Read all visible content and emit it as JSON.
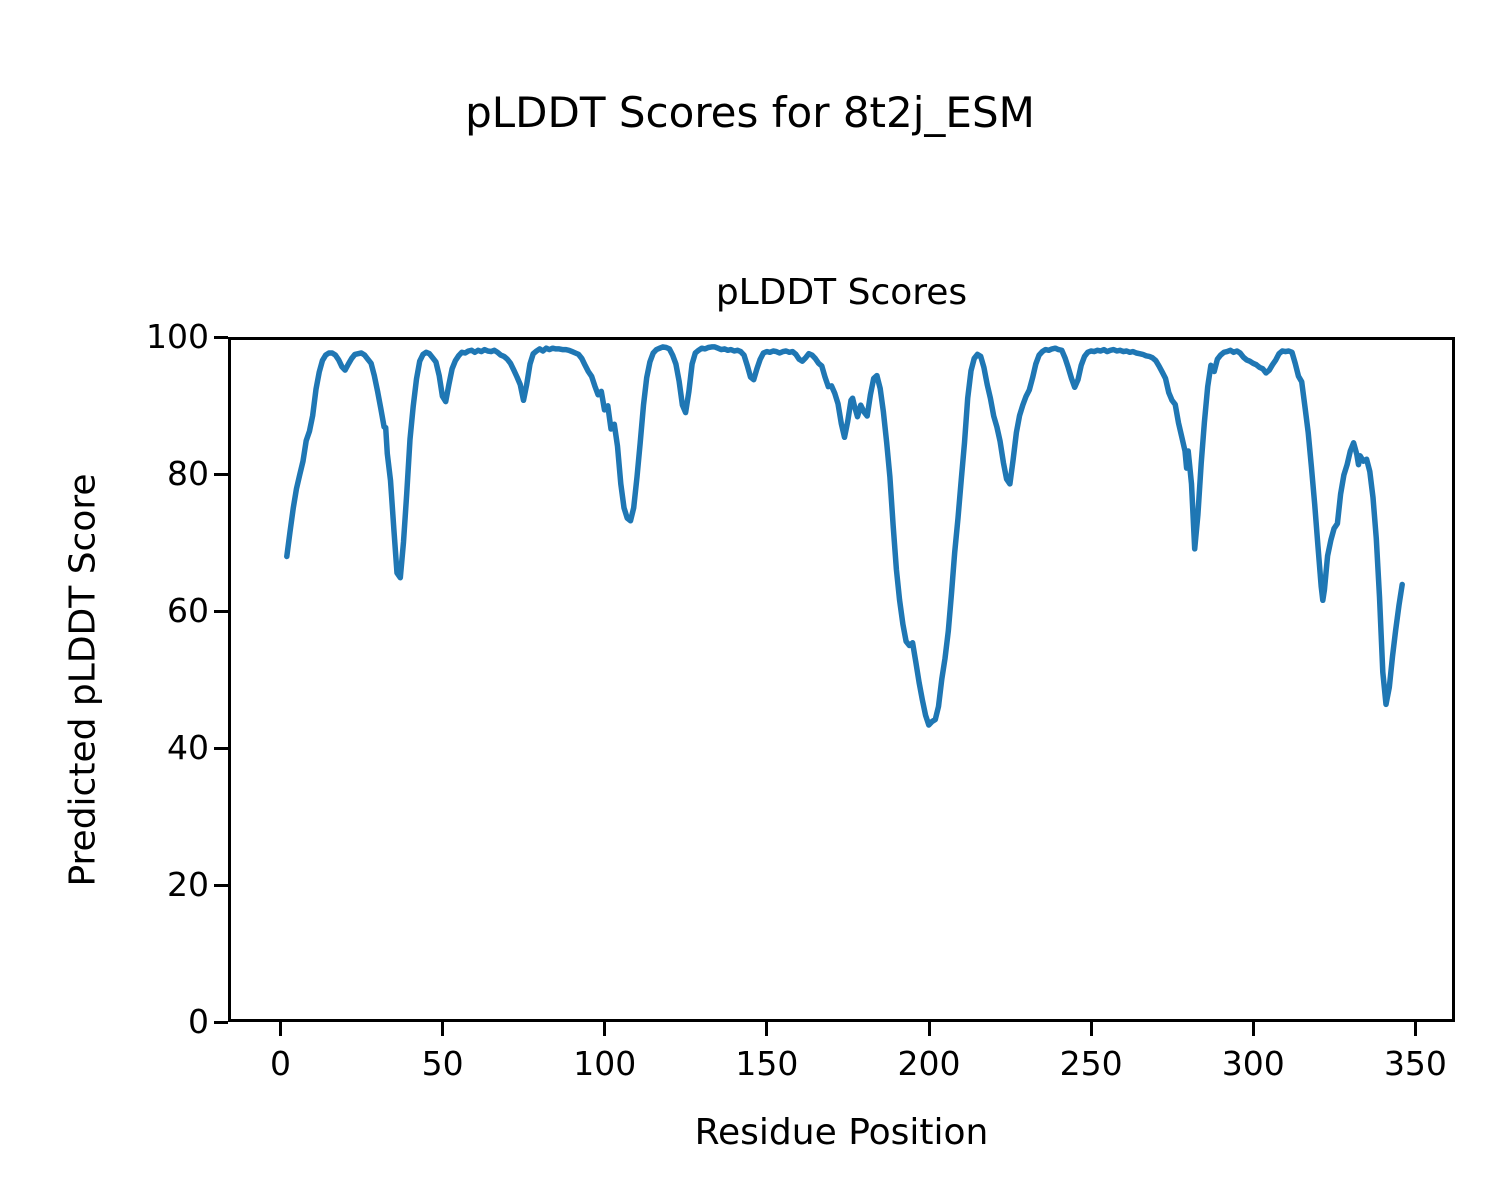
{
  "chart_data": {
    "type": "line",
    "title": "pLDDT Scores for 8t2j_ESM",
    "axes_title": "pLDDT Scores",
    "xlabel": "Residue Position",
    "ylabel": "Predicted pLDDT Score",
    "xlim": [
      -16.2,
      362.2
    ],
    "ylim": [
      0,
      100
    ],
    "xticks": [
      0,
      50,
      100,
      150,
      200,
      250,
      300,
      350
    ],
    "yticks": [
      0,
      20,
      40,
      60,
      80,
      100
    ],
    "grid": false,
    "legend_position": "none",
    "line_color": "#1f77b4",
    "series_name": "pLDDT",
    "points": [
      [
        1,
        68.4
      ],
      [
        2,
        72
      ],
      [
        3,
        75.5
      ],
      [
        4,
        78.3
      ],
      [
        5,
        80.3
      ],
      [
        6,
        82.3
      ],
      [
        7,
        85.3
      ],
      [
        8,
        86.7
      ],
      [
        9,
        89
      ],
      [
        10,
        92.8
      ],
      [
        11,
        95.3
      ],
      [
        12,
        97
      ],
      [
        13,
        97.8
      ],
      [
        14,
        98.1
      ],
      [
        15,
        98.1
      ],
      [
        16,
        97.8
      ],
      [
        17,
        97.1
      ],
      [
        18,
        96.1
      ],
      [
        19,
        95.6
      ],
      [
        20,
        96.5
      ],
      [
        21,
        97.3
      ],
      [
        22,
        97.9
      ],
      [
        23,
        98
      ],
      [
        24,
        98.1
      ],
      [
        25,
        97.8
      ],
      [
        26,
        97.2
      ],
      [
        27,
        96.6
      ],
      [
        28,
        94.8
      ],
      [
        29,
        92.5
      ],
      [
        30,
        90
      ],
      [
        31,
        87.3
      ],
      [
        31.5,
        87.2
      ],
      [
        32,
        83.4
      ],
      [
        33,
        79.5
      ],
      [
        34,
        72.5
      ],
      [
        35,
        66
      ],
      [
        36,
        65.3
      ],
      [
        37,
        70.5
      ],
      [
        38,
        77.5
      ],
      [
        39,
        85.5
      ],
      [
        40,
        90.3
      ],
      [
        41,
        94.3
      ],
      [
        42,
        96.9
      ],
      [
        43,
        97.9
      ],
      [
        44,
        98.2
      ],
      [
        45,
        98
      ],
      [
        46,
        97.4
      ],
      [
        47,
        96.8
      ],
      [
        48,
        94.8
      ],
      [
        49,
        91.8
      ],
      [
        50,
        91
      ],
      [
        51,
        93.5
      ],
      [
        52,
        95.8
      ],
      [
        53,
        97
      ],
      [
        54,
        97.7
      ],
      [
        55,
        98.2
      ],
      [
        56,
        98.1
      ],
      [
        57,
        98.4
      ],
      [
        58,
        98.5
      ],
      [
        59,
        98.2
      ],
      [
        60,
        98.5
      ],
      [
        61,
        98.3
      ],
      [
        62,
        98.6
      ],
      [
        63,
        98.4
      ],
      [
        64,
        98.3
      ],
      [
        65,
        98.5
      ],
      [
        66,
        98.2
      ],
      [
        67,
        97.8
      ],
      [
        68,
        97.6
      ],
      [
        69,
        97.2
      ],
      [
        70,
        96.6
      ],
      [
        71,
        95.6
      ],
      [
        72,
        94.6
      ],
      [
        73,
        93.5
      ],
      [
        74,
        91.2
      ],
      [
        75,
        93.5
      ],
      [
        76,
        96.5
      ],
      [
        77,
        98
      ],
      [
        78,
        98.4
      ],
      [
        79,
        98.7
      ],
      [
        80,
        98.4
      ],
      [
        81,
        98.8
      ],
      [
        82,
        98.6
      ],
      [
        83,
        98.8
      ],
      [
        84,
        98.7
      ],
      [
        85,
        98.7
      ],
      [
        86,
        98.6
      ],
      [
        87,
        98.6
      ],
      [
        88,
        98.5
      ],
      [
        89,
        98.3
      ],
      [
        90,
        98.1
      ],
      [
        91,
        97.9
      ],
      [
        92,
        97.3
      ],
      [
        93,
        96.3
      ],
      [
        94,
        95.4
      ],
      [
        95,
        94.7
      ],
      [
        96,
        93.3
      ],
      [
        97,
        92
      ],
      [
        98,
        92.5
      ],
      [
        99,
        89.8
      ],
      [
        100,
        90.4
      ],
      [
        101,
        87
      ],
      [
        102,
        87.7
      ],
      [
        103,
        84.5
      ],
      [
        104,
        79
      ],
      [
        105,
        75.5
      ],
      [
        106,
        74
      ],
      [
        107,
        73.6
      ],
      [
        108,
        75.5
      ],
      [
        109,
        80
      ],
      [
        110,
        85
      ],
      [
        111,
        90.5
      ],
      [
        112,
        94.5
      ],
      [
        113,
        96.8
      ],
      [
        114,
        98.1
      ],
      [
        115,
        98.6
      ],
      [
        116,
        98.8
      ],
      [
        117,
        99
      ],
      [
        118,
        98.9
      ],
      [
        119,
        98.7
      ],
      [
        120,
        97.8
      ],
      [
        121,
        96.5
      ],
      [
        122,
        94
      ],
      [
        123,
        90.5
      ],
      [
        124,
        89.4
      ],
      [
        125,
        92.5
      ],
      [
        126,
        96.5
      ],
      [
        127,
        98.1
      ],
      [
        128,
        98.5
      ],
      [
        129,
        98.8
      ],
      [
        130,
        98.7
      ],
      [
        131,
        98.9
      ],
      [
        132,
        99
      ],
      [
        133,
        99
      ],
      [
        134,
        98.8
      ],
      [
        135,
        98.6
      ],
      [
        136,
        98.7
      ],
      [
        137,
        98.5
      ],
      [
        138,
        98.6
      ],
      [
        139,
        98.4
      ],
      [
        140,
        98.5
      ],
      [
        141,
        98.3
      ],
      [
        142,
        97.8
      ],
      [
        143,
        96.3
      ],
      [
        144,
        94.6
      ],
      [
        145,
        94.2
      ],
      [
        146,
        95.8
      ],
      [
        147,
        97.2
      ],
      [
        148,
        98.1
      ],
      [
        149,
        98.3
      ],
      [
        150,
        98.2
      ],
      [
        151,
        98.4
      ],
      [
        152,
        98.3
      ],
      [
        153,
        98.1
      ],
      [
        154,
        98.3
      ],
      [
        155,
        98.4
      ],
      [
        156,
        98.2
      ],
      [
        157,
        98.3
      ],
      [
        158,
        97.9
      ],
      [
        159,
        97.2
      ],
      [
        160,
        96.9
      ],
      [
        161,
        97.4
      ],
      [
        162,
        98
      ],
      [
        163,
        97.8
      ],
      [
        164,
        97.3
      ],
      [
        165,
        96.6
      ],
      [
        166,
        96.2
      ],
      [
        167,
        94.6
      ],
      [
        168,
        93.2
      ],
      [
        169,
        93.3
      ],
      [
        170,
        92.2
      ],
      [
        171,
        90.7
      ],
      [
        172,
        87.8
      ],
      [
        173,
        85.8
      ],
      [
        174,
        88.1
      ],
      [
        175,
        91.2
      ],
      [
        175.5,
        91.5
      ],
      [
        176,
        90.5
      ],
      [
        177,
        88.8
      ],
      [
        178,
        90.5
      ],
      [
        179,
        89.5
      ],
      [
        180,
        88.9
      ],
      [
        181,
        92
      ],
      [
        182,
        94.4
      ],
      [
        183,
        94.8
      ],
      [
        184,
        92.9
      ],
      [
        185,
        89.5
      ],
      [
        186,
        85
      ],
      [
        187,
        80
      ],
      [
        188,
        73
      ],
      [
        189,
        66.5
      ],
      [
        190,
        62
      ],
      [
        191,
        58.5
      ],
      [
        192,
        56
      ],
      [
        193,
        55.4
      ],
      [
        194,
        55.8
      ],
      [
        195,
        53
      ],
      [
        196,
        50
      ],
      [
        197,
        47.5
      ],
      [
        198,
        45.2
      ],
      [
        199,
        43.8
      ],
      [
        200,
        44.3
      ],
      [
        201,
        44.6
      ],
      [
        202,
        46.5
      ],
      [
        203,
        50.5
      ],
      [
        204,
        53.5
      ],
      [
        205,
        57.5
      ],
      [
        206,
        63
      ],
      [
        207,
        69
      ],
      [
        208,
        74
      ],
      [
        209,
        79.5
      ],
      [
        210,
        85
      ],
      [
        211,
        91.5
      ],
      [
        212,
        95.5
      ],
      [
        213,
        97.3
      ],
      [
        214,
        97.9
      ],
      [
        215,
        97.6
      ],
      [
        216,
        96
      ],
      [
        217,
        93.5
      ],
      [
        218,
        91.5
      ],
      [
        219,
        88.9
      ],
      [
        220,
        87.3
      ],
      [
        221,
        85.2
      ],
      [
        222,
        82.1
      ],
      [
        223,
        79.7
      ],
      [
        224,
        79
      ],
      [
        225,
        82.5
      ],
      [
        226,
        86.5
      ],
      [
        227,
        89
      ],
      [
        228,
        90.5
      ],
      [
        229,
        91.8
      ],
      [
        230,
        92.7
      ],
      [
        231,
        94.5
      ],
      [
        232,
        96.5
      ],
      [
        233,
        97.8
      ],
      [
        234,
        98.3
      ],
      [
        235,
        98.6
      ],
      [
        236,
        98.5
      ],
      [
        237,
        98.7
      ],
      [
        238,
        98.8
      ],
      [
        239,
        98.6
      ],
      [
        240,
        98.5
      ],
      [
        241,
        97.4
      ],
      [
        242,
        96
      ],
      [
        243,
        94.4
      ],
      [
        244,
        93.1
      ],
      [
        245,
        94.2
      ],
      [
        246,
        96.3
      ],
      [
        247,
        97.6
      ],
      [
        248,
        98.2
      ],
      [
        249,
        98.4
      ],
      [
        250,
        98.3
      ],
      [
        251,
        98.5
      ],
      [
        252,
        98.4
      ],
      [
        253,
        98.6
      ],
      [
        254,
        98.3
      ],
      [
        255,
        98.5
      ],
      [
        256,
        98.6
      ],
      [
        257,
        98.4
      ],
      [
        258,
        98.5
      ],
      [
        259,
        98.3
      ],
      [
        260,
        98.4
      ],
      [
        261,
        98.2
      ],
      [
        262,
        98.3
      ],
      [
        263,
        98.1
      ],
      [
        264,
        98
      ],
      [
        265,
        97.9
      ],
      [
        266,
        97.7
      ],
      [
        267,
        97.6
      ],
      [
        268,
        97.4
      ],
      [
        269,
        97
      ],
      [
        270,
        96.2
      ],
      [
        271,
        95.3
      ],
      [
        272,
        94.4
      ],
      [
        273,
        92.3
      ],
      [
        274,
        91.2
      ],
      [
        275,
        90.6
      ],
      [
        276,
        87.9
      ],
      [
        277,
        85.9
      ],
      [
        278,
        83.8
      ],
      [
        278.5,
        81.3
      ],
      [
        279,
        83.8
      ],
      [
        280,
        79
      ],
      [
        281,
        69.5
      ],
      [
        282,
        74.5
      ],
      [
        283,
        82
      ],
      [
        284,
        88
      ],
      [
        285,
        93.2
      ],
      [
        286,
        96.3
      ],
      [
        287,
        95.4
      ],
      [
        288,
        97.2
      ],
      [
        289,
        97.8
      ],
      [
        290,
        98.2
      ],
      [
        291,
        98.3
      ],
      [
        292,
        98.5
      ],
      [
        293,
        98.2
      ],
      [
        294,
        98.4
      ],
      [
        295,
        98.1
      ],
      [
        296,
        97.5
      ],
      [
        297,
        97.1
      ],
      [
        298,
        96.9
      ],
      [
        299,
        96.6
      ],
      [
        300,
        96.4
      ],
      [
        301,
        96
      ],
      [
        302,
        95.8
      ],
      [
        303,
        95.2
      ],
      [
        304,
        95.6
      ],
      [
        305,
        96.4
      ],
      [
        306,
        97.1
      ],
      [
        307,
        98
      ],
      [
        308,
        98.4
      ],
      [
        309,
        98.3
      ],
      [
        310,
        98.4
      ],
      [
        311,
        98.2
      ],
      [
        312,
        96.6
      ],
      [
        313,
        94.7
      ],
      [
        314,
        93.9
      ],
      [
        315,
        90.3
      ],
      [
        316,
        86.5
      ],
      [
        317,
        81.5
      ],
      [
        318,
        76
      ],
      [
        319,
        70
      ],
      [
        320,
        64
      ],
      [
        320.5,
        62
      ],
      [
        321,
        63.5
      ],
      [
        322,
        68.5
      ],
      [
        323,
        70.8
      ],
      [
        324,
        72.5
      ],
      [
        325,
        73.2
      ],
      [
        326,
        77.5
      ],
      [
        327,
        80.3
      ],
      [
        328,
        81.8
      ],
      [
        329,
        83.8
      ],
      [
        330,
        85
      ],
      [
        331,
        83.3
      ],
      [
        331.5,
        81.8
      ],
      [
        332,
        83.1
      ],
      [
        333,
        82.3
      ],
      [
        334,
        82.6
      ],
      [
        335,
        80.8
      ],
      [
        336,
        77
      ],
      [
        337,
        71
      ],
      [
        338,
        62.5
      ],
      [
        339,
        51.5
      ],
      [
        340,
        46.8
      ],
      [
        341,
        49.3
      ],
      [
        342,
        53.8
      ],
      [
        343,
        57.7
      ],
      [
        344,
        61.3
      ],
      [
        345,
        64.3
      ]
    ]
  }
}
